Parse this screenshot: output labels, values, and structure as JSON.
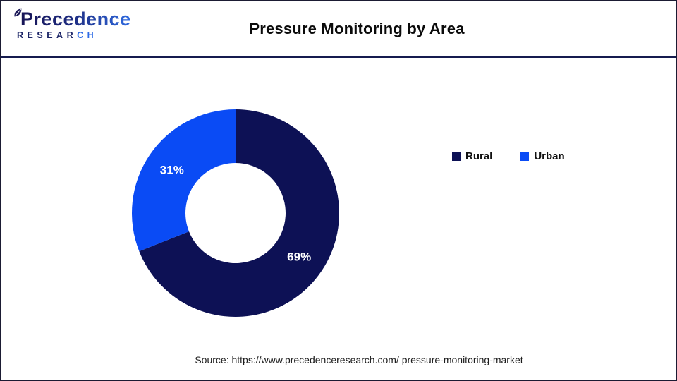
{
  "header": {
    "logo": {
      "brand": "Precedence",
      "word_left": "RESEAR",
      "word_right": "CH"
    },
    "title": "Pressure Monitoring by Area"
  },
  "chart_data": {
    "type": "pie",
    "subtype": "donut",
    "title": "Pressure Monitoring by Area",
    "categories": [
      "Rural",
      "Urban"
    ],
    "values": [
      69,
      31
    ],
    "series": [
      {
        "name": "Rural",
        "value": 69,
        "color": "#0D1155"
      },
      {
        "name": "Urban",
        "value": 31,
        "color": "#0A4BF5"
      }
    ],
    "unit": "%",
    "data_labels": [
      "69%",
      "31%"
    ],
    "data_label_color": "#FFFFFF",
    "start_angle_deg": 0,
    "direction": "clockwise",
    "inner_radius_ratio": 0.48,
    "legend_position": "right",
    "legend_labels": [
      "Rural",
      "Urban"
    ]
  },
  "footer": {
    "source": "Source: https://www.precedenceresearch.com/ pressure-monitoring-market"
  },
  "colors": {
    "divider": "#151B4F",
    "title_text": "#0B0B0B",
    "logo_navy": "#171455",
    "logo_blue": "#2E6BE6",
    "frame_border": "#1B1B33"
  }
}
